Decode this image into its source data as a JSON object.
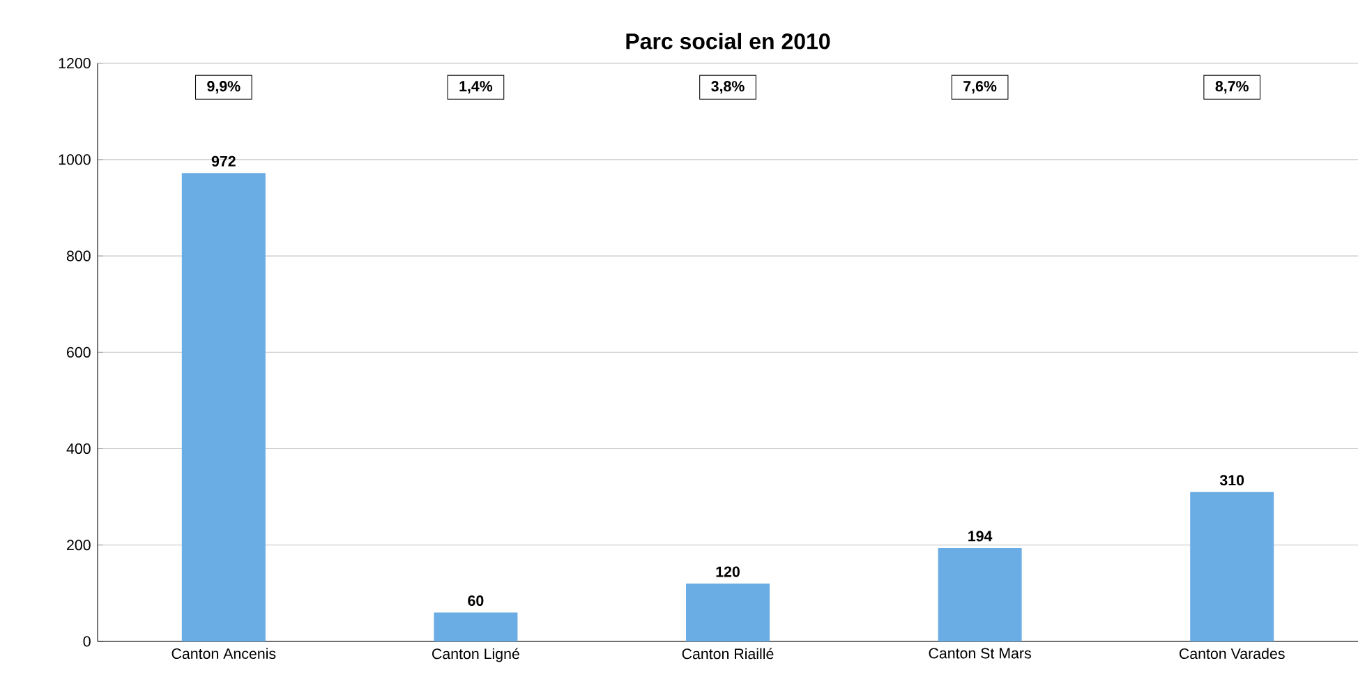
{
  "chart_data": {
    "type": "bar",
    "title": "Parc social en 2010",
    "categories": [
      "Canton Ancenis",
      "Canton Ligné",
      "Canton Riaillé",
      "Canton St Mars",
      "Canton Varades"
    ],
    "values": [
      972,
      60,
      120,
      194,
      310
    ],
    "color": "#6aade4",
    "ylim": [
      0,
      1200
    ],
    "yticks": [
      0,
      200,
      400,
      600,
      800,
      1000,
      1200
    ],
    "grid": "y",
    "data_labels": true,
    "annotations": [
      {
        "text": "9,9%",
        "x": "Canton Ancenis",
        "y": 1150
      },
      {
        "text": "1,4%",
        "x": "Canton Ligné",
        "y": 1150
      },
      {
        "text": "3,8%",
        "x": "Canton Riaillé",
        "y": 1150
      },
      {
        "text": "7,6%",
        "x": "Canton St Mars",
        "y": 1150
      },
      {
        "text": "8,7%",
        "x": "Canton Varades",
        "y": 1150
      }
    ]
  }
}
